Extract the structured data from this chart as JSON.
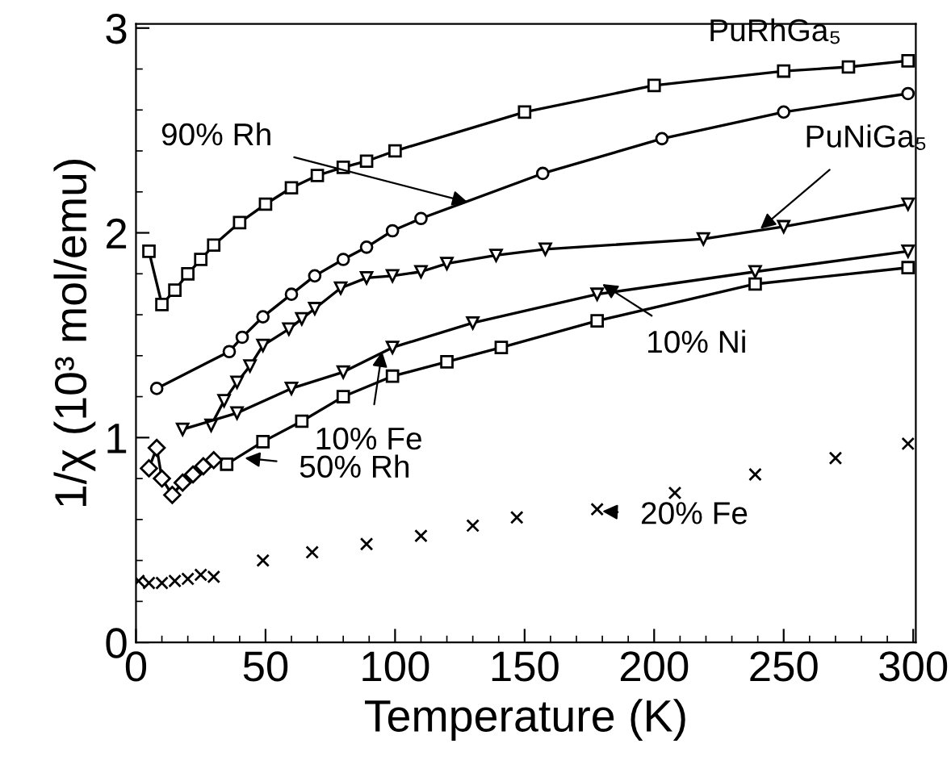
{
  "chart_data": {
    "type": "line",
    "xlabel": "Temperature (K)",
    "ylabel": "1/χ (10³ mol/emu)",
    "xlim": [
      0,
      301
    ],
    "ylim": [
      0,
      3.02
    ],
    "xticks": [
      0,
      50,
      100,
      150,
      200,
      250,
      300
    ],
    "yticks": [
      0,
      1,
      2,
      3
    ],
    "grid": false,
    "legend": false,
    "line_style": "solid",
    "series": [
      {
        "color": "#000000",
        "marker": "square",
        "x": [
          5,
          10,
          15,
          20,
          25,
          30,
          40,
          50,
          60,
          70,
          80,
          89,
          100,
          150,
          200,
          250,
          275,
          298
        ],
        "values": [
          1.91,
          1.65,
          1.72,
          1.8,
          1.87,
          1.94,
          2.05,
          2.14,
          2.22,
          2.28,
          2.32,
          2.35,
          2.4,
          2.59,
          2.72,
          2.79,
          2.81,
          2.84
        ]
      },
      {
        "color": "#000000",
        "marker": "circle",
        "x": [
          8,
          36,
          41,
          49,
          60,
          69,
          80,
          89,
          99,
          110,
          157,
          203,
          250,
          298
        ],
        "values": [
          1.24,
          1.42,
          1.49,
          1.59,
          1.7,
          1.79,
          1.87,
          1.93,
          2.01,
          2.07,
          2.29,
          2.46,
          2.59,
          2.68
        ]
      },
      {
        "color": "#000000",
        "marker": "triangle",
        "x": [
          29,
          34,
          39,
          44,
          49,
          59,
          64,
          69,
          79,
          89,
          99,
          110,
          120,
          139,
          158,
          219,
          250,
          298
        ],
        "values": [
          1.06,
          1.18,
          1.27,
          1.35,
          1.45,
          1.53,
          1.58,
          1.63,
          1.73,
          1.78,
          1.79,
          1.81,
          1.85,
          1.89,
          1.92,
          1.97,
          2.03,
          2.14
        ]
      },
      {
        "color": "#000000",
        "marker": "triangle",
        "x": [
          18,
          39,
          60,
          80,
          99,
          130,
          178,
          239,
          298
        ],
        "values": [
          1.04,
          1.12,
          1.24,
          1.32,
          1.44,
          1.56,
          1.7,
          1.81,
          1.91
        ]
      },
      {
        "color": "#000000",
        "marker": "square",
        "x": [
          35,
          49,
          64,
          80,
          99,
          120,
          141,
          178,
          239,
          298
        ],
        "values": [
          0.87,
          0.98,
          1.08,
          1.2,
          1.3,
          1.37,
          1.44,
          1.57,
          1.75,
          1.83
        ]
      },
      {
        "color": "#000000",
        "marker": "diamond",
        "x": [
          5,
          8,
          10,
          14,
          18,
          22,
          26,
          30
        ],
        "values": [
          0.85,
          0.95,
          0.8,
          0.72,
          0.78,
          0.82,
          0.86,
          0.89
        ]
      },
      {
        "type": "scatter",
        "color": "#000000",
        "marker": "cross",
        "x": [
          1,
          5,
          10,
          15,
          20,
          25,
          30,
          49,
          68,
          89,
          110,
          130,
          147,
          178,
          208,
          239,
          270,
          298
        ],
        "values": [
          0.3,
          0.29,
          0.29,
          0.3,
          0.31,
          0.33,
          0.32,
          0.4,
          0.44,
          0.48,
          0.52,
          0.57,
          0.61,
          0.65,
          0.73,
          0.82,
          0.9,
          0.97
        ]
      }
    ],
    "annotations": [
      {
        "text": "PuRhGa₅",
        "x": 250,
        "y": 2.79
      },
      {
        "text": "90% Rh",
        "x": 128,
        "y": 2.15
      },
      {
        "text": "PuNiGa₅",
        "x": 241,
        "y": 2.02
      },
      {
        "text": "10% Ni",
        "x": 180,
        "y": 1.75
      },
      {
        "text": "10% Fe",
        "x": 95,
        "y": 1.42
      },
      {
        "text": "50% Rh",
        "x": 42,
        "y": 0.9
      },
      {
        "text": "20% Fe",
        "x": 180,
        "y": 0.64
      }
    ]
  }
}
